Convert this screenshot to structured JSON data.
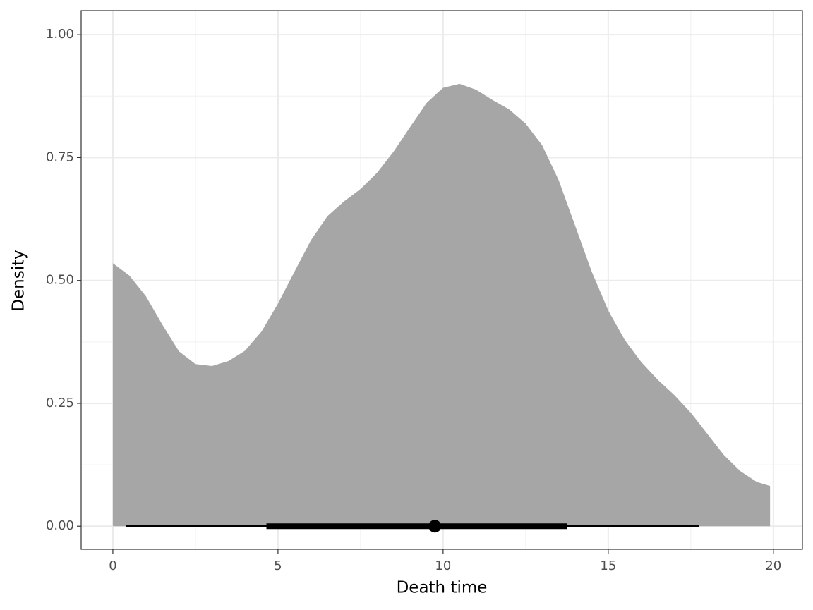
{
  "chart_data": {
    "type": "halfeye",
    "x_label": "Death time",
    "y_label": "Density",
    "x": [
      0,
      0.5,
      1,
      1.5,
      2,
      2.5,
      3,
      3.5,
      4,
      4.5,
      5,
      5.5,
      6,
      6.5,
      7,
      7.5,
      8,
      8.5,
      9,
      9.5,
      10,
      10.5,
      11,
      11.5,
      12,
      12.5,
      13,
      13.5,
      14,
      14.5,
      15,
      15.5,
      16,
      16.5,
      17,
      17.5,
      18,
      18.5,
      19,
      19.5,
      19.9
    ],
    "values": [
      0.535,
      0.51,
      0.468,
      0.41,
      0.356,
      0.33,
      0.326,
      0.336,
      0.357,
      0.396,
      0.453,
      0.518,
      0.582,
      0.631,
      0.661,
      0.686,
      0.719,
      0.762,
      0.812,
      0.861,
      0.892,
      0.9,
      0.888,
      0.867,
      0.848,
      0.819,
      0.775,
      0.704,
      0.611,
      0.518,
      0.439,
      0.379,
      0.334,
      0.298,
      0.267,
      0.231,
      0.188,
      0.145,
      0.112,
      0.09,
      0.082
    ],
    "color": "#a6a6a6",
    "interval_color": "#000000",
    "point": 9.75,
    "thick_interval": [
      4.65,
      13.75
    ],
    "thin_interval": [
      0.4,
      17.75
    ],
    "xlim": [
      -0.96,
      20.88
    ],
    "ylim": [
      -0.047,
      1.049
    ],
    "xticks": [
      0,
      5,
      10,
      15,
      20
    ],
    "yticks": [
      {
        "value": 0,
        "label": "0.00"
      },
      0.25,
      {
        "value": 0.5,
        "label": "0.50"
      },
      0.75,
      {
        "value": 1,
        "label": "1.00"
      }
    ],
    "grid": true
  }
}
